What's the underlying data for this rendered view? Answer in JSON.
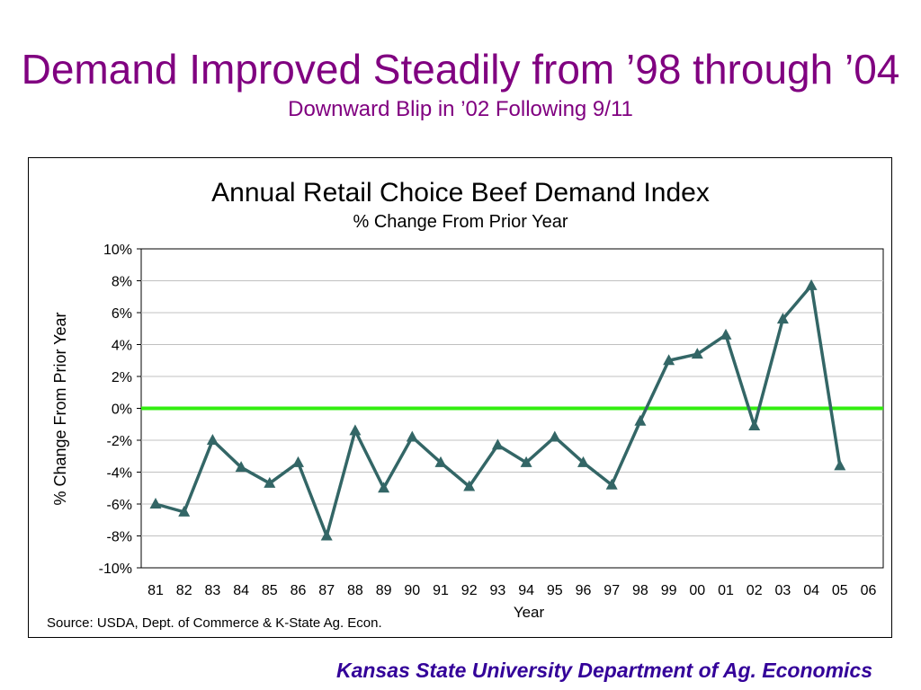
{
  "slide": {
    "title": "Demand Improved Steadily from ’98 through ’04",
    "subtitle": "Downward Blip in ’02 Following 9/11",
    "footer": "Kansas State University Department of Ag. Economics"
  },
  "colors": {
    "title": "#800080",
    "footer": "#330099",
    "series_line": "#336666",
    "zero_line": "#33ee11",
    "grid": "#c0c0c0"
  },
  "chart_data": {
    "type": "line",
    "title": "Annual Retail Choice Beef Demand Index",
    "subtitle": "% Change From Prior Year",
    "xlabel": "Year",
    "ylabel": "% Change From Prior Year",
    "source": "Source: USDA, Dept. of Commerce & K-State Ag. Econ.",
    "categories": [
      "81",
      "82",
      "83",
      "84",
      "85",
      "86",
      "87",
      "88",
      "89",
      "90",
      "91",
      "92",
      "93",
      "94",
      "95",
      "96",
      "97",
      "98",
      "99",
      "00",
      "01",
      "02",
      "03",
      "04",
      "05",
      "06"
    ],
    "y_ticks": [
      "10%",
      "8%",
      "6%",
      "4%",
      "2%",
      "0%",
      "-2%",
      "-4%",
      "-6%",
      "-8%",
      "-10%"
    ],
    "ylim": [
      -10,
      10
    ],
    "grid": true,
    "marker": "triangle",
    "reference_line": 0,
    "series": [
      {
        "values": [
          -6.0,
          -6.5,
          -2.0,
          -3.7,
          -4.7,
          -3.4,
          -8.0,
          -1.4,
          -5.0,
          -1.8,
          -3.4,
          -4.9,
          -2.3,
          -3.4,
          -1.8,
          -3.4,
          -4.8,
          -0.8,
          3.0,
          3.4,
          4.6,
          -1.1,
          5.6,
          7.7,
          -3.6,
          null
        ]
      }
    ]
  }
}
